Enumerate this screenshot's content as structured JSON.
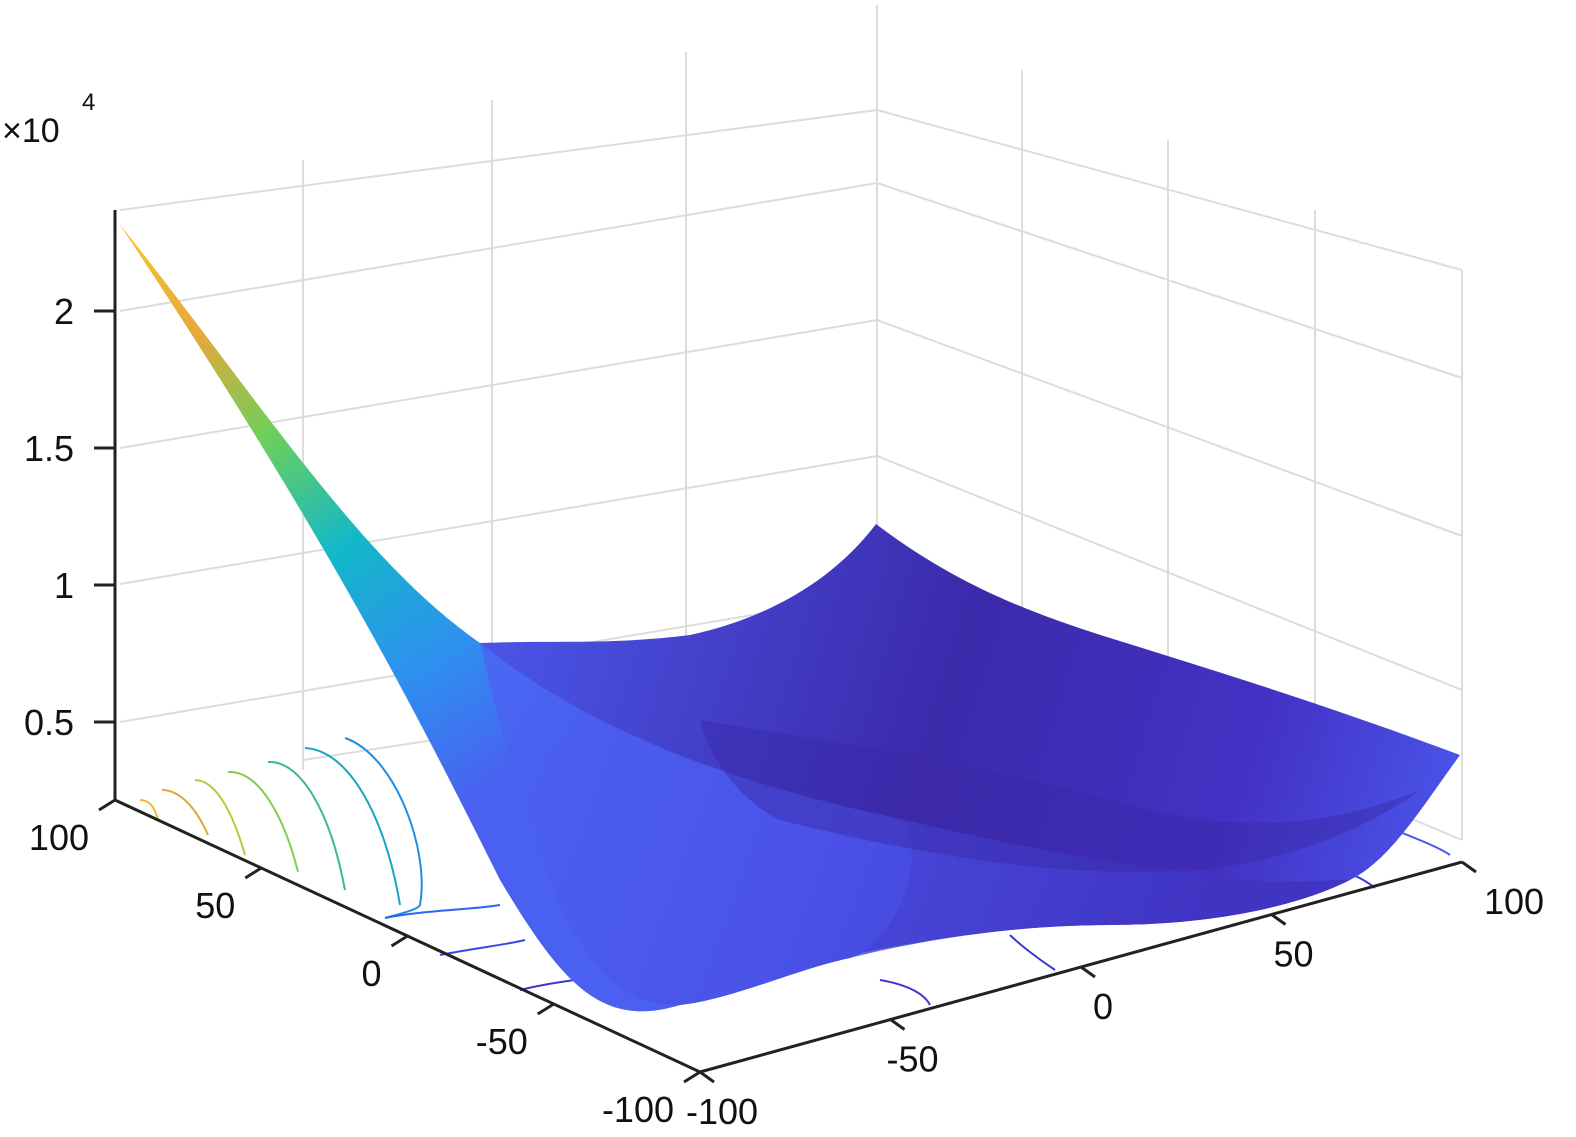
{
  "chart_data": {
    "type": "surface",
    "title": "",
    "xlabel": "",
    "ylabel": "",
    "zlabel": "",
    "xlim": [
      -100,
      100
    ],
    "ylim": [
      -100,
      100
    ],
    "zlim": [
      2000,
      23000
    ],
    "z_multiplier_label": "×10",
    "z_multiplier_exponent": "4",
    "x_ticks": [
      "-100",
      "-50",
      "0",
      "50",
      "100"
    ],
    "x_tick_values": [
      -100,
      -50,
      0,
      50,
      100
    ],
    "y_ticks": [
      "-100",
      "-50",
      "0",
      "50",
      "100"
    ],
    "y_tick_values": [
      -100,
      -50,
      0,
      50,
      100
    ],
    "z_ticks": [
      "0.5",
      "1",
      "1.5",
      "2"
    ],
    "z_tick_values": [
      5000,
      10000,
      15000,
      20000
    ],
    "grid": true,
    "colormap": "parula",
    "contour_on_floor": true,
    "surface_samples": {
      "x": [
        -100,
        -50,
        0,
        50,
        100
      ],
      "y": [
        -100,
        -50,
        0,
        50,
        100
      ],
      "z_rows_by_y": [
        [
          4200,
          3600,
          3800,
          3900,
          4500
        ],
        [
          6200,
          3400,
          3300,
          3500,
          4000
        ],
        [
          9800,
          3300,
          3100,
          3300,
          3700
        ],
        [
          15500,
          3900,
          3200,
          3300,
          3600
        ],
        [
          23000,
          6200,
          4800,
          6500,
          10000
        ]
      ]
    },
    "colors": {
      "low": "#3e26a8",
      "mid_low": "#4a60f0",
      "mid": "#13b8c8",
      "mid_high": "#6ecf5b",
      "high": "#f9c72c",
      "grid": "#dcdcdc",
      "axis": "#222222"
    }
  }
}
